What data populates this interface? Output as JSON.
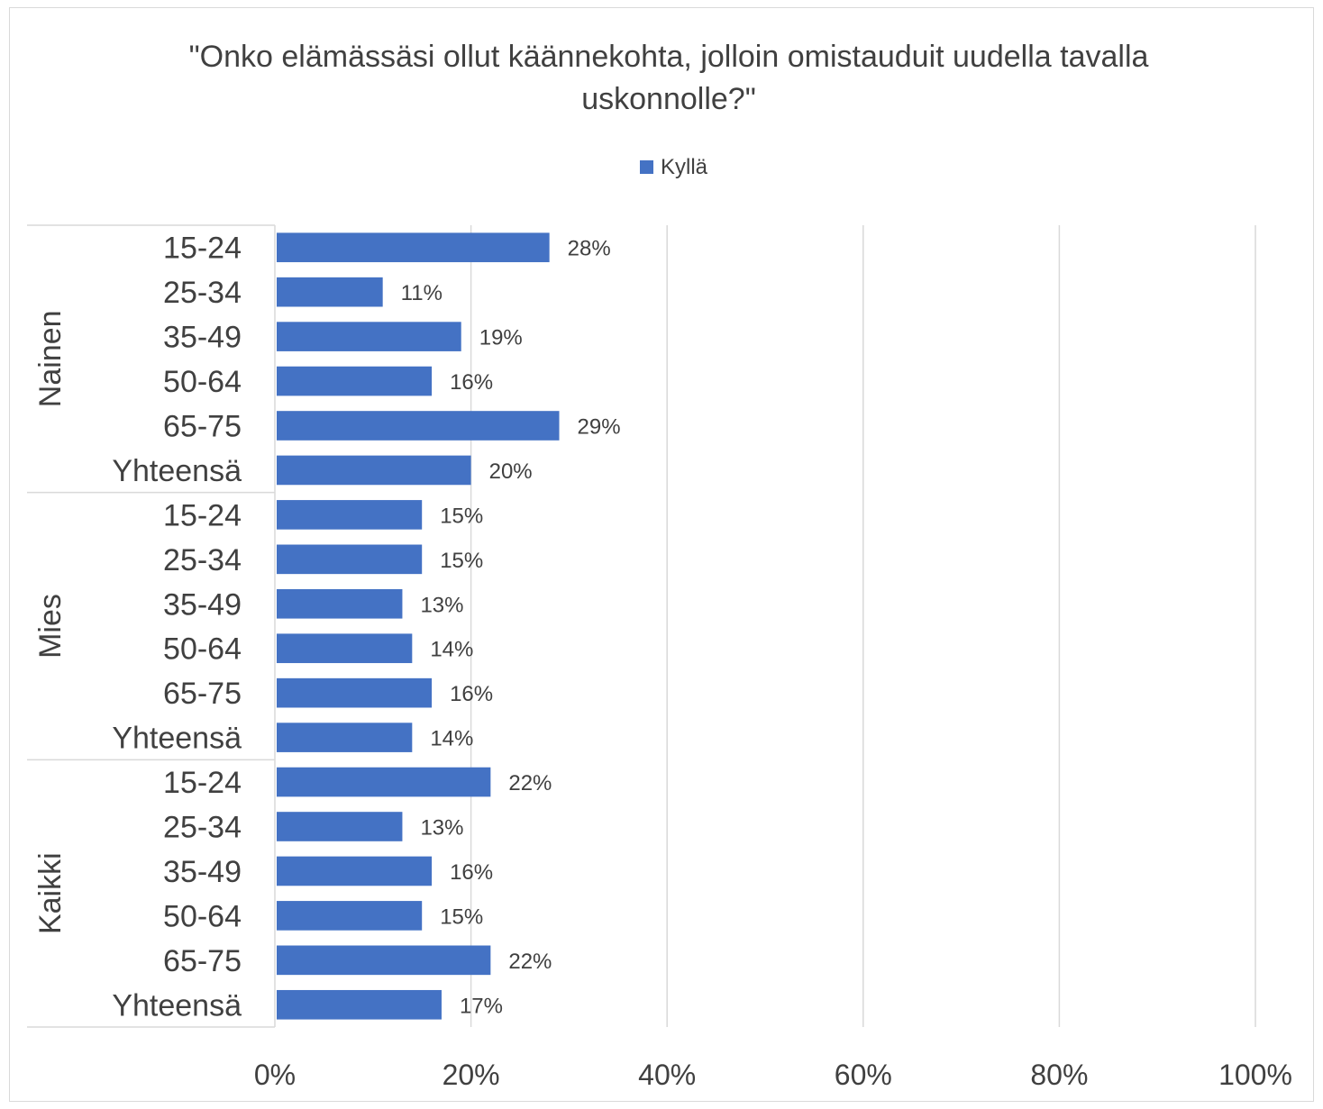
{
  "chart_data": {
    "type": "bar",
    "orientation": "horizontal",
    "title": "\"Onko elämässäsi ollut käännekohta, jolloin omistauduit uudella tavalla uskonnolle?\"",
    "title_lines": [
      "\"Onko elämässäsi ollut käännekohta, jolloin omistauduit uudella tavalla",
      "uskonnolle?\""
    ],
    "legend": {
      "position": "top",
      "entries": [
        "Kyllä"
      ]
    },
    "groups": [
      {
        "name": "Nainen",
        "categories": [
          "15-24",
          "25-34",
          "35-49",
          "50-64",
          "65-75",
          "Yhteensä"
        ],
        "values": [
          28,
          11,
          19,
          16,
          29,
          20
        ],
        "labels": [
          "28%",
          "11%",
          "19%",
          "16%",
          "29%",
          "20%"
        ]
      },
      {
        "name": "Mies",
        "categories": [
          "15-24",
          "25-34",
          "35-49",
          "50-64",
          "65-75",
          "Yhteensä"
        ],
        "values": [
          15,
          15,
          13,
          14,
          16,
          14
        ],
        "labels": [
          "15%",
          "15%",
          "13%",
          "14%",
          "16%",
          "14%"
        ]
      },
      {
        "name": "Kaikki",
        "categories": [
          "15-24",
          "25-34",
          "35-49",
          "50-64",
          "65-75",
          "Yhteensä"
        ],
        "values": [
          22,
          13,
          16,
          15,
          22,
          17
        ],
        "labels": [
          "22%",
          "13%",
          "16%",
          "15%",
          "22%",
          "17%"
        ]
      }
    ],
    "series": [
      {
        "name": "Kyllä",
        "color": "#4472c4"
      }
    ],
    "xlim": [
      0,
      100
    ],
    "xticks": [
      0,
      20,
      40,
      60,
      80,
      100
    ],
    "xtick_labels": [
      "0%",
      "20%",
      "40%",
      "60%",
      "80%",
      "100%"
    ],
    "grid": true,
    "colors": {
      "bar": "#4472c4",
      "grid": "#d9d9d9",
      "text": "#404040"
    }
  }
}
